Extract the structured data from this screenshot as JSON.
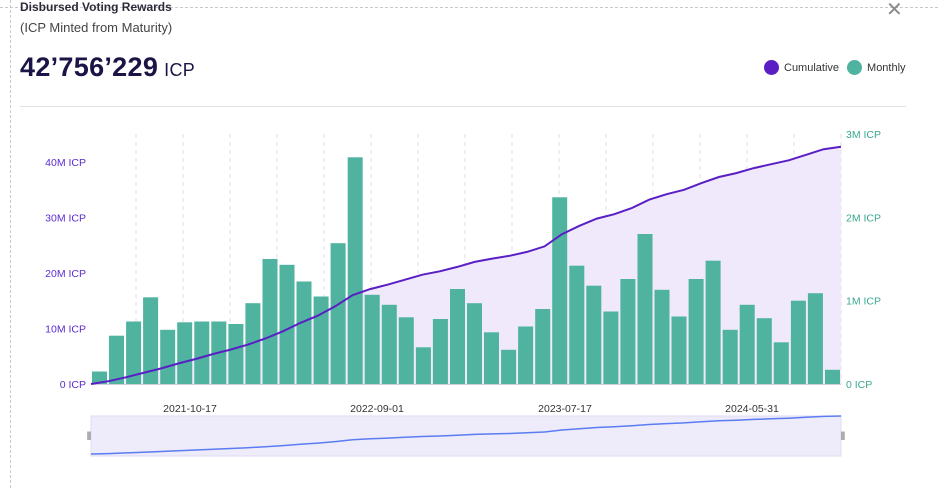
{
  "header": {
    "title": "Disbursed Voting Rewards",
    "subtitle": "(ICP Minted from Maturity)",
    "total_value": "42’756’229",
    "total_unit": "ICP"
  },
  "legend": {
    "cumulative_label": "Cumulative",
    "monthly_label": "Monthly"
  },
  "colors": {
    "cumulative": "#5a1fc4",
    "monthly": "#4fb3a0",
    "left_axis": "#5a2bd0",
    "right_axis": "#3aa891",
    "area_fill": "#efe9fb"
  },
  "icons": {
    "close": "close-icon",
    "range_handle": "drag-handle-icon"
  },
  "chart_data": {
    "type": "bar",
    "title": "Disbursed Voting Rewards",
    "x_tick_labels": [
      "2021-10-17",
      "2022-09-01",
      "2023-07-17",
      "2024-05-31"
    ],
    "left_axis": {
      "ticks": [
        "0 ICP",
        "10M ICP",
        "20M ICP",
        "30M ICP",
        "40M ICP"
      ],
      "range": [
        0,
        44000000
      ]
    },
    "right_axis": {
      "ticks": [
        "0 ICP",
        "1M ICP",
        "2M ICP",
        "3M ICP"
      ],
      "range": [
        0,
        3000000
      ]
    },
    "series": [
      {
        "name": "Monthly",
        "kind": "bar",
        "axis": "right",
        "values": [
          150000,
          580000,
          750000,
          1040000,
          650000,
          740000,
          750000,
          750000,
          720000,
          970000,
          1500000,
          1430000,
          1230000,
          1050000,
          1690000,
          2720000,
          1070000,
          950000,
          800000,
          440000,
          780000,
          1140000,
          970000,
          620000,
          410000,
          690000,
          900000,
          2240000,
          1420000,
          1180000,
          870000,
          1260000,
          1800000,
          1130000,
          810000,
          1260000,
          1480000,
          650000,
          950000,
          790000,
          500000,
          1000000,
          1090000,
          170000
        ]
      },
      {
        "name": "Cumulative",
        "kind": "line",
        "axis": "left",
        "values": [
          0,
          500000,
          1200000,
          2000000,
          2800000,
          3700000,
          4500000,
          5400000,
          6200000,
          7100000,
          8200000,
          9500000,
          11000000,
          12300000,
          14000000,
          16000000,
          17100000,
          17900000,
          18800000,
          19700000,
          20300000,
          21100000,
          22000000,
          22600000,
          23100000,
          23800000,
          24800000,
          27000000,
          28500000,
          29800000,
          30600000,
          31700000,
          33200000,
          34200000,
          35000000,
          36200000,
          37300000,
          38000000,
          38900000,
          39600000,
          40300000,
          41300000,
          42300000,
          42756229
        ]
      }
    ],
    "grid": {
      "vertical": true,
      "horizontal": false
    },
    "legend_position": "top-right"
  },
  "navigator": {
    "cumulative_values": [
      0,
      500000,
      1200000,
      2000000,
      2800000,
      3700000,
      4500000,
      5400000,
      6200000,
      7100000,
      8200000,
      9500000,
      11000000,
      12300000,
      14000000,
      16000000,
      17100000,
      17900000,
      18800000,
      19700000,
      20300000,
      21100000,
      22000000,
      22600000,
      23100000,
      23800000,
      24800000,
      27000000,
      28500000,
      29800000,
      30600000,
      31700000,
      33200000,
      34200000,
      35000000,
      36200000,
      37300000,
      38000000,
      38900000,
      39600000,
      40300000,
      41300000,
      42300000,
      42756229
    ],
    "handle_label": "‖"
  }
}
